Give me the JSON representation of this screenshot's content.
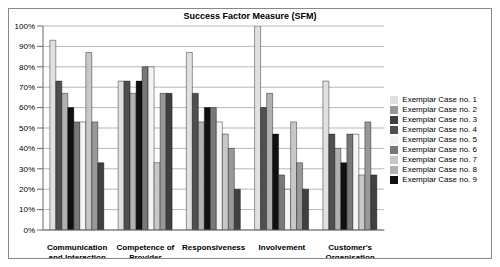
{
  "chart_data": {
    "type": "bar",
    "title": "Success Factor Measure (SFM)",
    "categories": [
      "Communication and Interaction",
      "Competence of Provider",
      "Responsiveness",
      "Involvement",
      "Customer's Organisation"
    ],
    "series": [
      {
        "name": "Exemplar Case no. 1",
        "color": "#e0e0e0",
        "values": [
          93,
          73,
          87,
          100,
          73
        ]
      },
      {
        "name": "Exemplar Case no. 4",
        "color": "#505050",
        "values": [
          73,
          73,
          67,
          60,
          47
        ]
      },
      {
        "name": "Exemplar Case no. 8",
        "color": "#b0b0b0",
        "values": [
          67,
          67,
          53,
          67,
          40
        ]
      },
      {
        "name": "Exemplar Case no. 9",
        "color": "#101010",
        "values": [
          60,
          73,
          60,
          47,
          33
        ]
      },
      {
        "name": "Exemplar Case no. 6",
        "color": "#787878",
        "values": [
          53,
          80,
          60,
          27,
          47
        ]
      },
      {
        "name": "Exemplar Case no. 5",
        "color": "#f4f4f4",
        "values": [
          53,
          80,
          53,
          20,
          47
        ]
      },
      {
        "name": "Exemplar Case no. 7",
        "color": "#c8c8c8",
        "values": [
          87,
          33,
          47,
          53,
          27
        ]
      },
      {
        "name": "Exemplar Case no. 2",
        "color": "#989898",
        "values": [
          53,
          67,
          40,
          33,
          53
        ]
      },
      {
        "name": "Exemplar Case no. 3",
        "color": "#404040",
        "values": [
          33,
          67,
          20,
          20,
          27
        ]
      }
    ],
    "ylim": [
      0,
      100
    ],
    "yticks": [
      {
        "value": 0,
        "label": "0%"
      },
      {
        "value": 10,
        "label": "10%"
      },
      {
        "value": 20,
        "label": "20%"
      },
      {
        "value": 30,
        "label": "30%"
      },
      {
        "value": 40,
        "label": "40%"
      },
      {
        "value": 50,
        "label": "50%"
      },
      {
        "value": 60,
        "label": "60%"
      },
      {
        "value": 70,
        "label": "70%"
      },
      {
        "value": 80,
        "label": "80%"
      },
      {
        "value": 90,
        "label": "90%"
      },
      {
        "value": 100,
        "label": "100%"
      }
    ],
    "grid": true,
    "legend": "right"
  }
}
